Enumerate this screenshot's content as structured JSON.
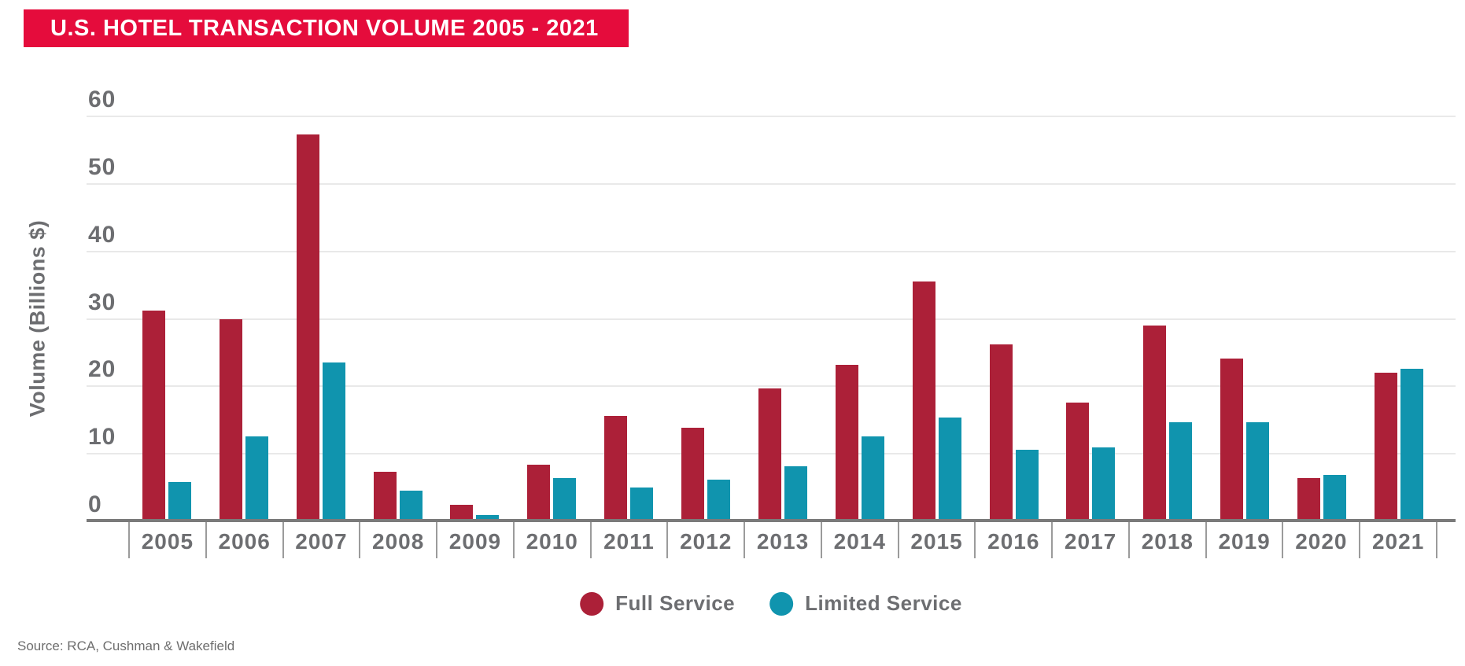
{
  "header": {
    "title": "U.S. HOTEL TRANSACTION VOLUME 2005 - 2021",
    "banner_color": "#e50c3c",
    "title_text_color": "#ffffff"
  },
  "chart_data": {
    "type": "bar",
    "title": "U.S. HOTEL TRANSACTION VOLUME 2005 - 2021",
    "categories": [
      "2005",
      "2006",
      "2007",
      "2008",
      "2009",
      "2010",
      "2011",
      "2012",
      "2013",
      "2014",
      "2015",
      "2016",
      "2017",
      "2018",
      "2019",
      "2020",
      "2021"
    ],
    "series": [
      {
        "name": "Full Service",
        "color": "#ac2038",
        "values": [
          31.2,
          30.0,
          57.3,
          7.3,
          2.4,
          8.4,
          15.6,
          13.9,
          19.7,
          23.2,
          35.5,
          26.2,
          17.6,
          29.0,
          24.1,
          6.4,
          22.0
        ]
      },
      {
        "name": "Limited Service",
        "color": "#1094ae",
        "values": [
          5.8,
          12.6,
          23.5,
          4.5,
          0.9,
          6.4,
          5.0,
          6.2,
          8.2,
          12.6,
          15.4,
          10.6,
          11.0,
          14.7,
          14.7,
          6.9,
          22.6
        ]
      }
    ],
    "xlabel": "",
    "ylabel": "Volume (Billions $)",
    "ylim": [
      0,
      60
    ],
    "yticks": [
      0,
      10,
      20,
      30,
      40,
      50,
      60
    ],
    "grid": true,
    "legend_position": "bottom",
    "axis_text_color": "#6d6e71",
    "gridline_color": "#e9e9e9",
    "baseline_color": "#7a7a7a"
  },
  "legend": {
    "items": [
      {
        "label": "Full Service",
        "color": "#ac2038"
      },
      {
        "label": "Limited Service",
        "color": "#1094ae"
      }
    ]
  },
  "footer": {
    "source": "Source: RCA, Cushman & Wakefield"
  }
}
